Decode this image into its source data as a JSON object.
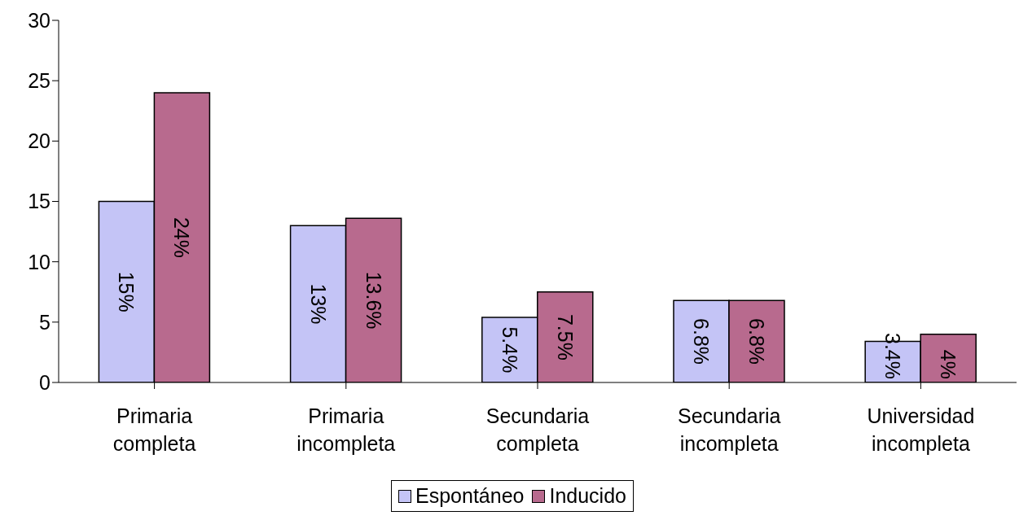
{
  "chart_data": {
    "type": "bar",
    "categories": [
      "Primaria completa",
      "Primaria incompleta",
      "Secundaria completa",
      "Secundaria incompleta",
      "Universidad incompleta"
    ],
    "series": [
      {
        "name": "Espontáneo",
        "color": "#c4c4f6",
        "values": [
          15,
          13,
          5.4,
          6.8,
          3.4
        ],
        "value_labels": [
          "15%",
          "13%",
          "5.4%",
          "6.8%",
          "3.4%"
        ]
      },
      {
        "name": "Inducido",
        "color": "#b86a8e",
        "values": [
          24,
          13.6,
          7.5,
          6.8,
          4
        ],
        "value_labels": [
          "24%",
          "13.6%",
          "7.5%",
          "6.8%",
          "4%"
        ]
      }
    ],
    "ylim": [
      0,
      30
    ],
    "yticks": [
      0,
      5,
      10,
      15,
      20,
      25,
      30
    ],
    "grid": false,
    "legend": "bottom"
  }
}
